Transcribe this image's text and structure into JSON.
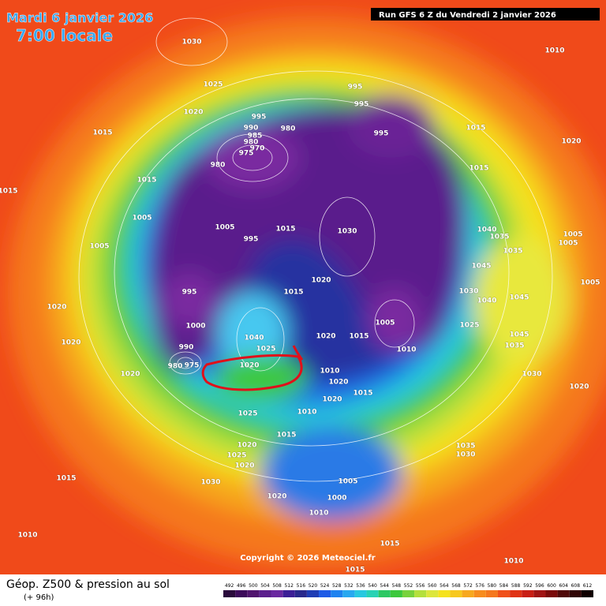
{
  "header": {
    "date": "Mardi 6 janvier 2026",
    "time": "7:00 locale",
    "run": "Run GFS 6 Z du Vendredi 2 janvier 2026"
  },
  "map": {
    "isobar_labels": [
      1030,
      1010,
      1025,
      995,
      995,
      1020,
      995,
      990,
      980,
      985,
      980,
      970,
      975,
      1015,
      1015,
      995,
      1020,
      980,
      1015,
      1015,
      1015,
      1005,
      1005,
      995,
      1015,
      1030,
      1040,
      1035,
      1005,
      1035,
      1005,
      1005,
      1045,
      1020,
      1015,
      995,
      1030,
      1040,
      1045,
      1005,
      1020,
      1000,
      1005,
      1025,
      1020,
      1040,
      1020,
      1015,
      1045,
      1035,
      1010,
      990,
      1025,
      980,
      975,
      1020,
      1010,
      1030,
      1020,
      1020,
      1015,
      1020,
      1020,
      1010,
      1025,
      1015,
      1035,
      1030,
      1020,
      1025,
      1020,
      1015,
      1005,
      1030,
      1020,
      1000,
      1010,
      1010,
      1015,
      1010,
      1015
    ]
  },
  "footer": {
    "copyright": "Copyright © 2026 Meteociel.fr",
    "title": "Géop. Z500 & pression au sol",
    "subtitle": "(+ 96h)",
    "scale": [
      492,
      496,
      500,
      504,
      508,
      512,
      516,
      520,
      524,
      528,
      532,
      536,
      540,
      544,
      548,
      552,
      556,
      560,
      564,
      568,
      572,
      576,
      580,
      584,
      588,
      592,
      596,
      600,
      604,
      608,
      612
    ]
  }
}
